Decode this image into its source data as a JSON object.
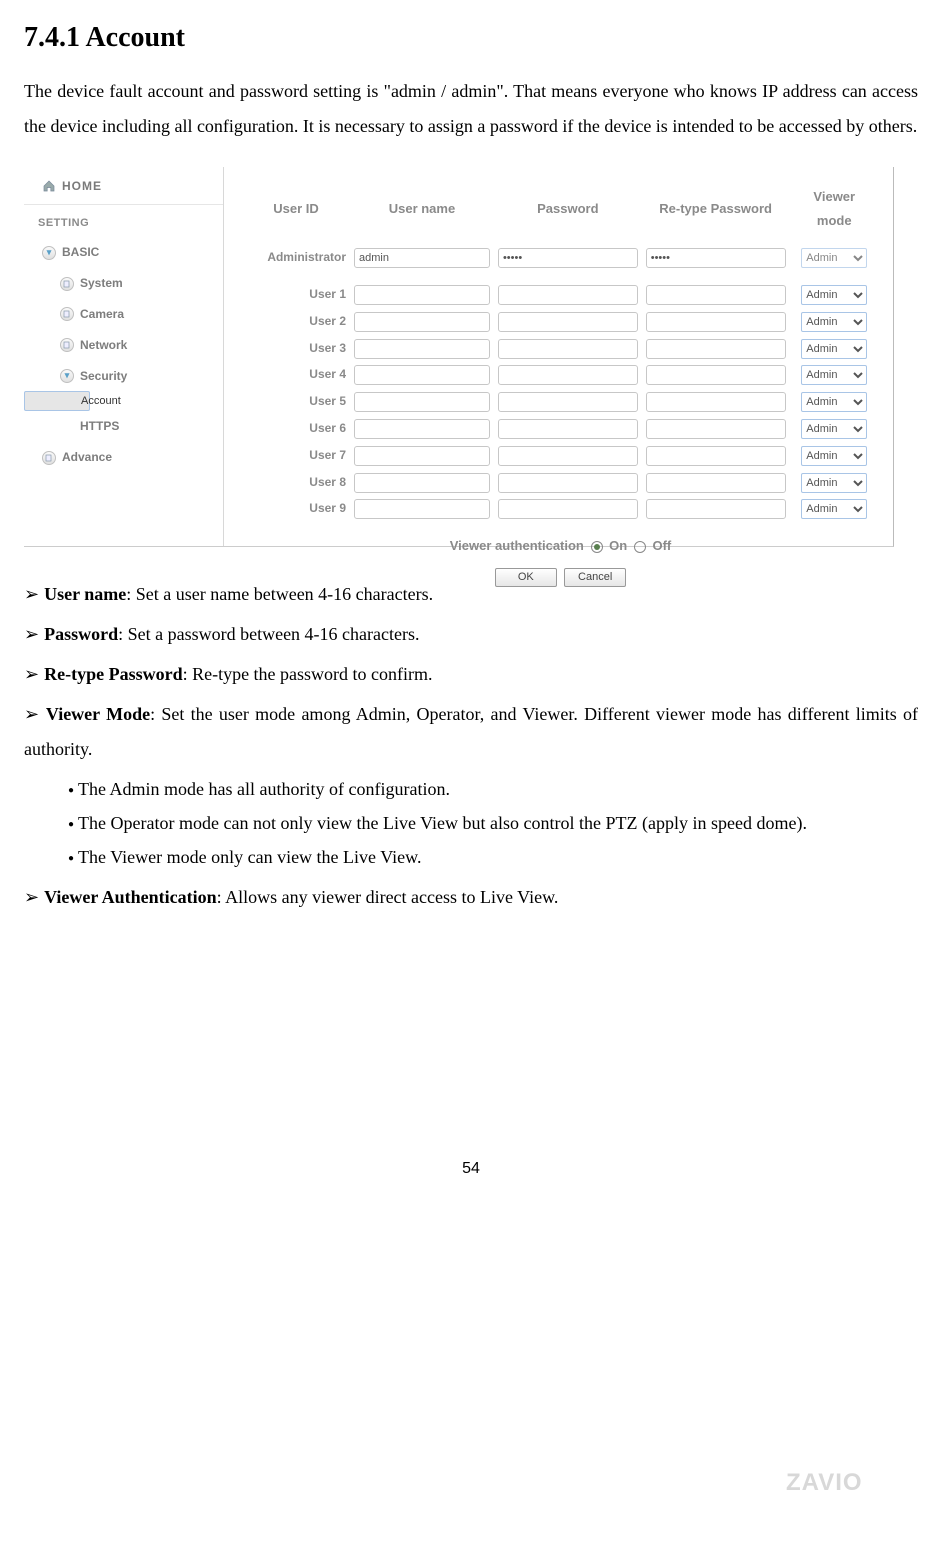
{
  "heading": "7.4.1 Account",
  "intro": "The device fault account and password setting is \"admin / admin\". That means everyone who knows IP address can access the device including all configuration. It is necessary to assign a password if the device is intended to be accessed by others.",
  "sidebar": {
    "home": "HOME",
    "setting": "SETTING",
    "basic": "BASIC",
    "system": "System",
    "camera": "Camera",
    "network": "Network",
    "security": "Security",
    "account": "Account",
    "https": "HTTPS",
    "advance": "Advance"
  },
  "table": {
    "headers": {
      "userid": "User ID",
      "username": "User name",
      "password": "Password",
      "retype": "Re-type Password",
      "viewermode": "Viewer mode"
    },
    "admin_row": {
      "label": "Administrator",
      "username": "admin",
      "password": "•••••",
      "retype": "•••••",
      "mode": "Admin"
    },
    "user_labels": [
      "User 1",
      "User 2",
      "User 3",
      "User 4",
      "User 5",
      "User 6",
      "User 7",
      "User 8",
      "User 9"
    ],
    "mode_option": "Admin",
    "viewer_auth_label": "Viewer authentication",
    "on": "On",
    "off": "Off",
    "ok": "OK",
    "cancel": "Cancel"
  },
  "bullets": {
    "username_label": "User name",
    "username_text": ": Set a user name between 4-16 characters.",
    "password_label": "Password",
    "password_text": ": Set a password between 4-16 characters.",
    "retype_label": "Re-type Password",
    "retype_text": ": Re-type the password to confirm.",
    "viewermode_label": "Viewer Mode",
    "viewermode_text": ": Set the user mode among Admin, Operator, and Viewer. Different viewer mode has different limits of authority.",
    "sub1": "The Admin mode has all authority of configuration.",
    "sub2": "The Operator mode can not only view the Live View but also control the PTZ (apply in speed dome).",
    "sub3": "The Viewer mode only can view the Live View.",
    "viewerauth_label": "Viewer Authentication",
    "viewerauth_text": ": Allows any viewer direct access to Live View."
  },
  "pagenum": "54",
  "logo": "ZAVIO",
  "colors": {
    "grey_text": "#8a8a8a",
    "border": "#c7c7c7",
    "sel_highlight": "#e6e6e6"
  }
}
